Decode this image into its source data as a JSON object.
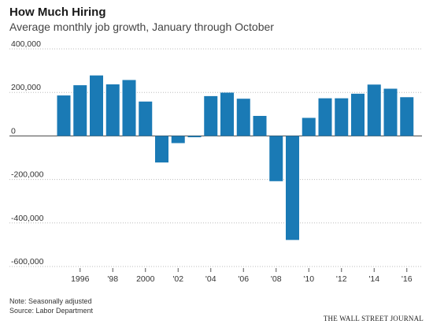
{
  "header": {
    "title": "How Much Hiring",
    "subtitle": "Average monthly job growth, January through October"
  },
  "footer": {
    "note": "Note: Seasonally adjusted",
    "source": "Source: Labor Department",
    "credit": "THE WALL STREET JOURNAL"
  },
  "chart_data": {
    "type": "bar",
    "title": "How Much Hiring",
    "subtitle": "Average monthly job growth, January through October",
    "xlabel": "",
    "ylabel": "",
    "categories": [
      "1995",
      "1996",
      "1997",
      "1998",
      "1999",
      "2000",
      "2001",
      "2002",
      "2003",
      "2004",
      "2005",
      "2006",
      "2007",
      "2008",
      "2009",
      "2010",
      "2011",
      "2012",
      "2013",
      "2014",
      "2015",
      "2016"
    ],
    "values": [
      186000,
      233000,
      278000,
      237000,
      257000,
      158000,
      -122000,
      -33000,
      -6000,
      183000,
      199000,
      171000,
      92000,
      -208000,
      -478000,
      83000,
      173000,
      173000,
      194000,
      236000,
      217000,
      178000
    ],
    "ylim": [
      -600000,
      400000
    ],
    "yticks": [
      400000,
      200000,
      0,
      -200000,
      -400000,
      -600000
    ],
    "ytick_labels": [
      "400,000",
      "200,000",
      "0",
      "-200,000",
      "-400,000",
      "-600,000"
    ],
    "xtick_labels": [
      "1996",
      "'98",
      "2000",
      "'02",
      "'04",
      "'06",
      "'08",
      "'10",
      "'12",
      "'14",
      "'16"
    ],
    "xtick_years": [
      "1996",
      "1998",
      "2000",
      "2002",
      "2004",
      "2006",
      "2008",
      "2010",
      "2012",
      "2014",
      "2016"
    ],
    "bar_color": "#1a7ab5",
    "grid": true
  }
}
